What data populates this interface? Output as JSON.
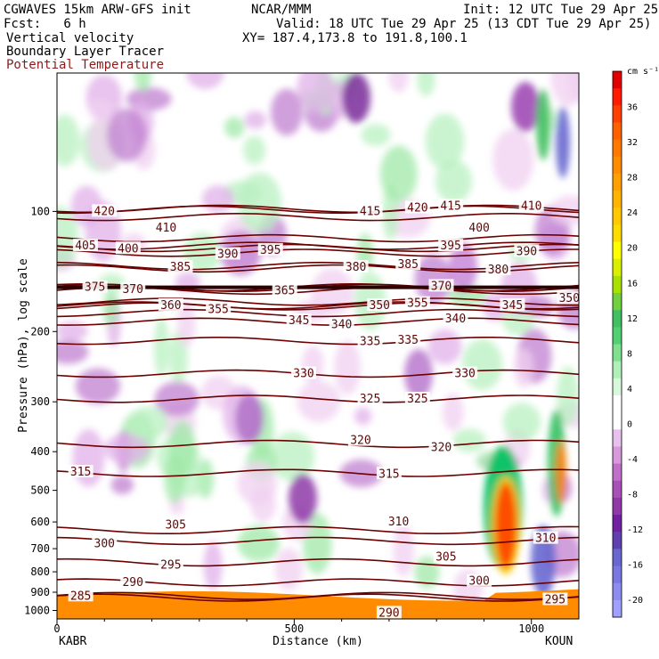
{
  "header": {
    "model": "CGWAVES 15km ARW-GFS init",
    "org": "NCAR/MMM",
    "init": "Init: 12 UTC Tue 29 Apr 25",
    "fcst": "Fcst:   6 h",
    "valid": "Valid: 18 UTC Tue 29 Apr 25 (13 CDT Tue 29 Apr 25)",
    "field1": "Vertical velocity",
    "field2": "Boundary Layer Tracer",
    "field3": "Potential Temperature",
    "xy": "XY= 187.4,173.8 to 191.8,100.1"
  },
  "colors": {
    "theta_contour": "#6b0000",
    "field3_text": "#8b1a1a",
    "bl_tracer": "#ff8c00"
  },
  "chart_data": {
    "type": "heatmap",
    "xlabel": "Distance (km)",
    "ylabel": "Pressure (hPa), log scale",
    "x_ticks": [
      0,
      500,
      1000
    ],
    "xlim": [
      0,
      1100
    ],
    "y_ticks": [
      100,
      200,
      300,
      400,
      500,
      600,
      700,
      800,
      900,
      1000
    ],
    "y_scale": "log",
    "ylim": [
      1050,
      45
    ],
    "start_station": "KABR",
    "end_station": "KOUN",
    "colorbar": {
      "units": "cm s⁻¹",
      "labels": [
        36,
        32,
        28,
        24,
        20,
        16,
        12,
        8,
        4,
        0,
        -4,
        -8,
        -12,
        -16,
        -20
      ],
      "levels": [
        40,
        38,
        36,
        34,
        32,
        30,
        28,
        26,
        24,
        22,
        20,
        18,
        16,
        14,
        12,
        10,
        8,
        6,
        4,
        2,
        0,
        -2,
        -4,
        -6,
        -8,
        -10,
        -12,
        -14,
        -16,
        -18,
        -20,
        -22
      ],
      "colors": [
        "#e00000",
        "#ff1a00",
        "#ff4000",
        "#ff6000",
        "#ff7800",
        "#ff8c00",
        "#ffa000",
        "#ffb400",
        "#ffc800",
        "#ffdc00",
        "#ffff00",
        "#d8f000",
        "#a8e000",
        "#70d040",
        "#40c060",
        "#50d070",
        "#80e090",
        "#b0f0b8",
        "#d8f8dc",
        "#ffffff",
        "#ffffff",
        "#e8c0ec",
        "#d898dc",
        "#c070c8",
        "#a850b8",
        "#9038a8",
        "#7020a0",
        "#6040b0",
        "#6868d0",
        "#7878e0",
        "#8c8cf0",
        "#a0a0ff"
      ]
    },
    "theta_labels": [
      {
        "value": 420,
        "x": 100,
        "p": 100
      },
      {
        "value": 415,
        "x": 660,
        "p": 100
      },
      {
        "value": 420,
        "x": 760,
        "p": 98
      },
      {
        "value": 415,
        "x": 830,
        "p": 97
      },
      {
        "value": 410,
        "x": 1000,
        "p": 97
      },
      {
        "value": 410,
        "x": 230,
        "p": 110
      },
      {
        "value": 405,
        "x": 60,
        "p": 122
      },
      {
        "value": 400,
        "x": 150,
        "p": 124
      },
      {
        "value": 395,
        "x": 450,
        "p": 125
      },
      {
        "value": 395,
        "x": 830,
        "p": 122
      },
      {
        "value": 400,
        "x": 890,
        "p": 110
      },
      {
        "value": 390,
        "x": 360,
        "p": 128
      },
      {
        "value": 390,
        "x": 990,
        "p": 126
      },
      {
        "value": 385,
        "x": 260,
        "p": 138
      },
      {
        "value": 380,
        "x": 630,
        "p": 138
      },
      {
        "value": 385,
        "x": 740,
        "p": 136
      },
      {
        "value": 380,
        "x": 930,
        "p": 140
      },
      {
        "value": 375,
        "x": 80,
        "p": 155
      },
      {
        "value": 370,
        "x": 160,
        "p": 157
      },
      {
        "value": 365,
        "x": 480,
        "p": 158
      },
      {
        "value": 370,
        "x": 810,
        "p": 154
      },
      {
        "value": 360,
        "x": 240,
        "p": 172
      },
      {
        "value": 355,
        "x": 340,
        "p": 176
      },
      {
        "value": 350,
        "x": 680,
        "p": 172
      },
      {
        "value": 355,
        "x": 760,
        "p": 170
      },
      {
        "value": 345,
        "x": 510,
        "p": 188
      },
      {
        "value": 340,
        "x": 600,
        "p": 192
      },
      {
        "value": 345,
        "x": 960,
        "p": 172
      },
      {
        "value": 350,
        "x": 1080,
        "p": 165
      },
      {
        "value": 340,
        "x": 840,
        "p": 186
      },
      {
        "value": 335,
        "x": 660,
        "p": 212
      },
      {
        "value": 335,
        "x": 740,
        "p": 210
      },
      {
        "value": 330,
        "x": 520,
        "p": 255
      },
      {
        "value": 330,
        "x": 860,
        "p": 255
      },
      {
        "value": 325,
        "x": 660,
        "p": 295
      },
      {
        "value": 325,
        "x": 760,
        "p": 295
      },
      {
        "value": 320,
        "x": 640,
        "p": 375
      },
      {
        "value": 320,
        "x": 810,
        "p": 390
      },
      {
        "value": 315,
        "x": 50,
        "p": 450
      },
      {
        "value": 315,
        "x": 700,
        "p": 455
      },
      {
        "value": 310,
        "x": 720,
        "p": 600
      },
      {
        "value": 310,
        "x": 1030,
        "p": 660
      },
      {
        "value": 305,
        "x": 250,
        "p": 610
      },
      {
        "value": 305,
        "x": 820,
        "p": 735
      },
      {
        "value": 300,
        "x": 100,
        "p": 680
      },
      {
        "value": 300,
        "x": 890,
        "p": 845
      },
      {
        "value": 295,
        "x": 240,
        "p": 770
      },
      {
        "value": 295,
        "x": 1050,
        "p": 940
      },
      {
        "value": 290,
        "x": 160,
        "p": 850
      },
      {
        "value": 290,
        "x": 700,
        "p": 1015
      },
      {
        "value": 285,
        "x": 50,
        "p": 920
      }
    ]
  }
}
